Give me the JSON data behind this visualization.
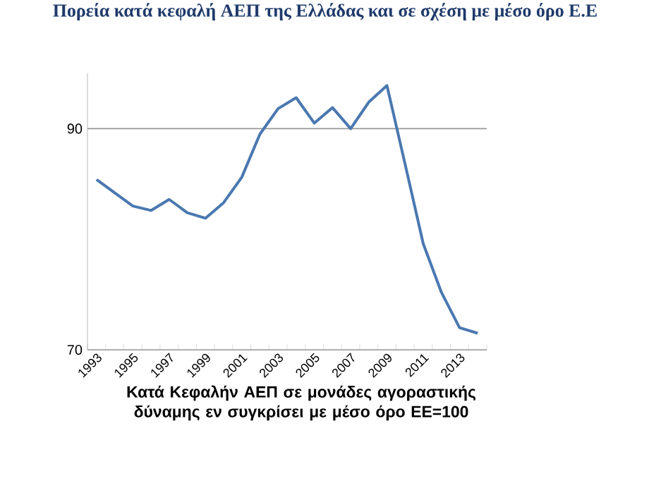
{
  "chart_data": {
    "type": "line",
    "title": "Πορεία κατά κεφαλή ΑΕΠ της Ελλάδας και σε σχέση με μέσο όρο Ε.Ε",
    "xlabel": "Κατά Κεφαλήν ΑΕΠ σε μονάδες αγοραστικής δύναμης εν συγκρίσει με μέσο όρο ΕΕ=100",
    "categories": [
      "1993",
      null,
      "1995",
      null,
      "1997",
      null,
      "1999",
      null,
      "2001",
      null,
      "2003",
      null,
      "2005",
      null,
      "2007",
      null,
      "2009",
      null,
      "2011",
      null,
      "2013",
      null
    ],
    "series": [
      {
        "color": "#4a78b0",
        "values": [
          85.4,
          84.2,
          83.0,
          82.6,
          83.6,
          82.4,
          81.9,
          83.3,
          85.6,
          89.5,
          91.8,
          92.8,
          90.5,
          91.9,
          90.0,
          92.4,
          93.9,
          86.8,
          79.6,
          75.2,
          72.0,
          71.5
        ]
      }
    ],
    "ylim": [
      70,
      95
    ],
    "yticks": [
      70,
      90
    ],
    "grid": "y",
    "marker": "none",
    "line_style": "solid"
  }
}
